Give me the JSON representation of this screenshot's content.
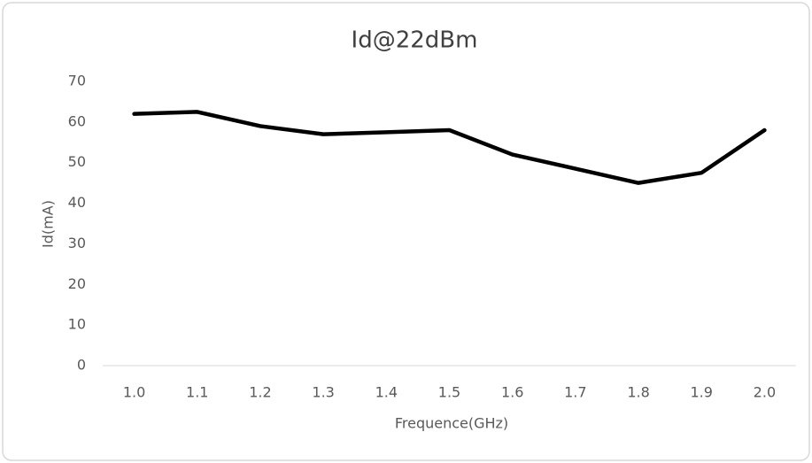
{
  "chart_data": {
    "type": "line",
    "title": "Id@22dBm",
    "x_label": "Frequence(GHz)",
    "y_label": "Id(mA)",
    "categories": [
      "1.0",
      "1.1",
      "1.2",
      "1.3",
      "1.4",
      "1.5",
      "1.6",
      "1.7",
      "1.8",
      "1.9",
      "2.0"
    ],
    "values": [
      62,
      62.5,
      59,
      57,
      57.5,
      58,
      52,
      48.5,
      45,
      47.5,
      58
    ],
    "color": "#000000",
    "ylim": [
      0,
      70
    ],
    "yticks": [
      0,
      10,
      20,
      30,
      40,
      50,
      60,
      70
    ],
    "grid": false
  }
}
